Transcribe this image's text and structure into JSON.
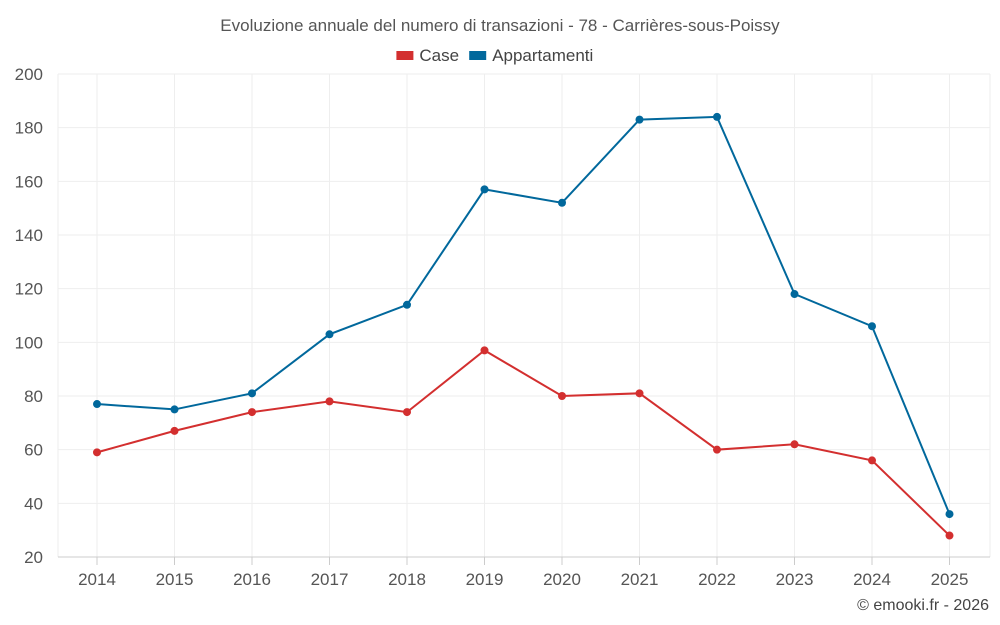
{
  "chart_data": {
    "type": "line",
    "title": "Evoluzione annuale del numero di transazioni - 78 - Carrières-sous-Poissy",
    "categories": [
      "2014",
      "2015",
      "2016",
      "2017",
      "2018",
      "2019",
      "2020",
      "2021",
      "2022",
      "2023",
      "2024",
      "2025"
    ],
    "series": [
      {
        "name": "Case",
        "color": "#d32f2f",
        "values": [
          59,
          67,
          74,
          78,
          74,
          97,
          80,
          81,
          60,
          62,
          56,
          28
        ]
      },
      {
        "name": "Appartamenti",
        "color": "#01689c",
        "values": [
          77,
          75,
          81,
          103,
          114,
          157,
          152,
          183,
          184,
          118,
          106,
          36
        ]
      }
    ],
    "ylim": [
      20,
      200
    ],
    "yticks": [
      20,
      40,
      60,
      80,
      100,
      120,
      140,
      160,
      180,
      200
    ],
    "grid": true,
    "legend_position": "top-center",
    "xlabel": "",
    "ylabel": ""
  },
  "credit": "© emooki.fr - 2026"
}
